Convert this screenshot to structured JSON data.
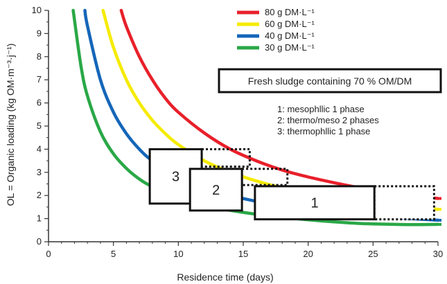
{
  "chart_data": {
    "type": "line",
    "xlabel": "Residence time (days)",
    "ylabel": "OL = Organic loading (kg OM·m⁻³·j⁻¹)",
    "xlim": [
      0,
      30
    ],
    "ylim": [
      0,
      10
    ],
    "x_ticks": [
      "0",
      "5",
      "10",
      "15",
      "20",
      "25",
      "30"
    ],
    "y_ticks": [
      "0",
      "1",
      "2",
      "3",
      "4",
      "5",
      "6",
      "7",
      "8",
      "9",
      "10"
    ],
    "series": [
      {
        "name": "80 g DM·L⁻¹",
        "color": "#e8202a",
        "x": [
          5.6,
          6,
          7,
          8,
          9,
          10,
          12,
          14,
          16,
          18,
          20,
          22,
          24,
          26,
          28,
          30
        ],
        "y": [
          10,
          9.3,
          8.0,
          7.0,
          6.2,
          5.6,
          4.7,
          4.0,
          3.5,
          3.1,
          2.8,
          2.55,
          2.33,
          2.15,
          2.0,
          1.87
        ]
      },
      {
        "name": "60 g DM·L⁻¹",
        "color": "#f5eb00",
        "x": [
          4.2,
          5,
          6,
          7,
          8,
          9,
          10,
          12,
          14,
          16,
          18,
          20,
          22,
          24,
          26,
          28,
          30
        ],
        "y": [
          10,
          8.4,
          7.0,
          6.0,
          5.25,
          4.67,
          4.2,
          3.5,
          3.0,
          2.63,
          2.33,
          2.1,
          1.91,
          1.75,
          1.62,
          1.5,
          1.4
        ]
      },
      {
        "name": "40 g DM·L⁻¹",
        "color": "#1566b8",
        "x": [
          2.8,
          3,
          4,
          5,
          6,
          7,
          8,
          10,
          12,
          14,
          16,
          18,
          20,
          22,
          24,
          26,
          28,
          30
        ],
        "y": [
          10,
          9.33,
          7.0,
          5.6,
          4.67,
          4.0,
          3.5,
          2.8,
          2.33,
          2.0,
          1.75,
          1.56,
          1.4,
          1.27,
          1.17,
          1.08,
          1.0,
          0.93
        ]
      },
      {
        "name": "30 g DM·L⁻¹",
        "color": "#2aa847",
        "x": [
          1.9,
          2.5,
          3,
          4,
          5,
          6,
          7,
          8,
          10,
          12,
          14,
          16,
          18,
          20,
          22,
          24,
          26,
          28,
          30
        ],
        "y": [
          10,
          7.6,
          6.3,
          4.75,
          3.8,
          3.17,
          2.71,
          2.38,
          1.9,
          1.58,
          1.36,
          1.19,
          1.06,
          0.95,
          0.86,
          0.79,
          0.76,
          0.74,
          0.75
        ]
      }
    ],
    "title_box": "Fresh sludge containing 70 % OM/DM",
    "process_notes": [
      "1: mesophllic 1 phase",
      "2: thermo/meso 2 phases",
      "3: thermophllic 1 phase"
    ],
    "process_boxes": [
      {
        "label": "3",
        "x_range": [
          7.8,
          11.8
        ],
        "y_range": [
          1.65,
          4.0
        ],
        "dotted_x_range": [
          11.8,
          15.5
        ],
        "dotted_y_range": [
          3.25,
          4.0
        ]
      },
      {
        "label": "2",
        "x_range": [
          10.9,
          14.9
        ],
        "y_range": [
          1.35,
          3.15
        ],
        "dotted_x_range": [
          14.9,
          18.4
        ],
        "dotted_y_range": [
          2.45,
          3.15
        ]
      },
      {
        "label": "1",
        "x_range": [
          15.9,
          25.1
        ],
        "y_range": [
          0.97,
          2.4
        ],
        "dotted_x_range": [
          25.1,
          29.7
        ],
        "dotted_y_range": [
          0.97,
          2.4
        ]
      }
    ]
  }
}
